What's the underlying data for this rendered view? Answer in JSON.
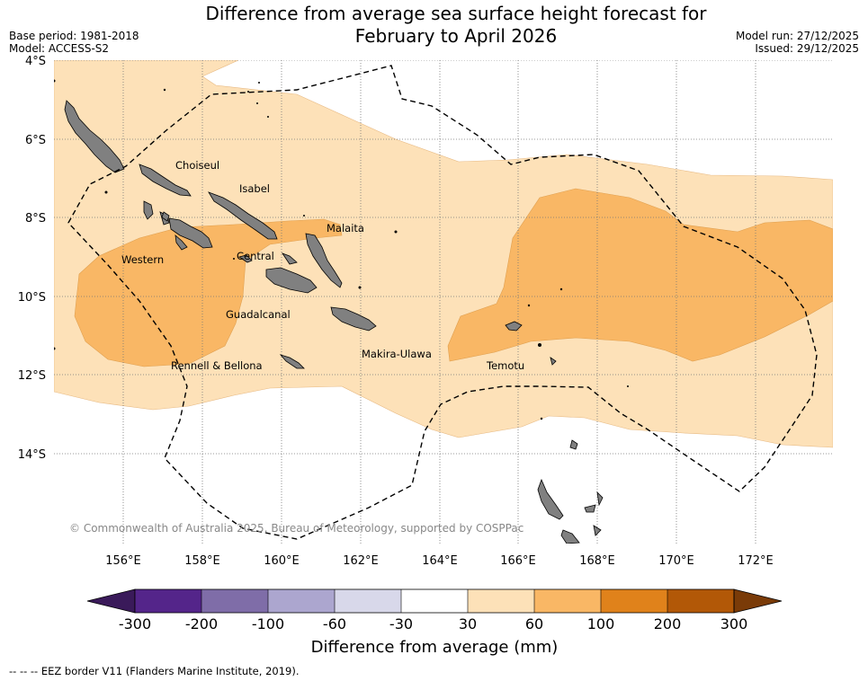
{
  "title_line1": "Difference from average sea surface height forecast for",
  "title_line2": "February to April 2026",
  "meta_left": [
    "Base period: 1981-2018",
    "Model: ACCESS-S2"
  ],
  "meta_right": [
    "Model run: 27/12/2025",
    "Issued: 29/12/2025"
  ],
  "lat_labels": [
    "4°S",
    "6°S",
    "8°S",
    "10°S",
    "12°S",
    "14°S"
  ],
  "lon_labels": [
    "156°E",
    "158°E",
    "160°E",
    "162°E",
    "164°E",
    "166°E",
    "168°E",
    "170°E",
    "172°E"
  ],
  "provinces": [
    "Choiseul",
    "Isabel",
    "Malaita",
    "Western",
    "Central",
    "Guadalcanal",
    "Rennell & Bellona",
    "Makira-Ulawa",
    "Temotu"
  ],
  "copyright": "© Commonwealth of Australia 2025, Bureau of Meteorology, supported by COSPPac",
  "colorbar": {
    "ticks": [
      "-300",
      "-200",
      "-100",
      "-60",
      "-30",
      "30",
      "60",
      "100",
      "200",
      "300"
    ],
    "colors": [
      "#3a1a5a",
      "#54258a",
      "#7f6da8",
      "#aca6cf",
      "#d8d8ea",
      "#ffffff",
      "#fde1b8",
      "#f9b765",
      "#e0821b",
      "#b25807",
      "#7a3b08"
    ],
    "label": "Difference from average (mm)"
  },
  "legend_note": "-- -- -- EEZ border V11 (Flanders Marine Institute, 2019).",
  "colors": {
    "light": "#fde1b8",
    "mid": "#f9b765",
    "land": "#808080",
    "grid": "#777777"
  }
}
